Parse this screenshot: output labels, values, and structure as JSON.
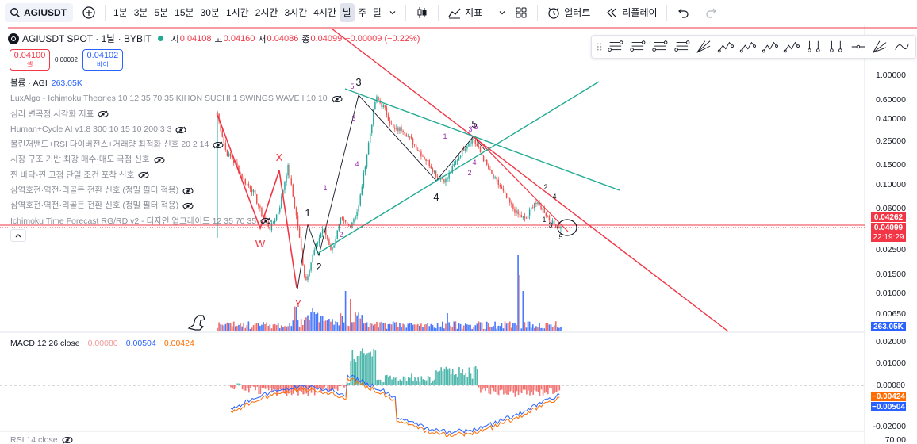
{
  "toolbar": {
    "symbol": "AGIUSDT",
    "intervals": [
      "1분",
      "3분",
      "5분",
      "15분",
      "30분",
      "1시간",
      "2시간",
      "3시간",
      "4시간",
      "날",
      "주",
      "달"
    ],
    "active_interval": "날",
    "indicators_label": "지표",
    "alert_label": "얼러트",
    "replay_label": "리플레이",
    "icons": [
      "search-icon",
      "add-icon",
      "chevron-down-icon",
      "candle-type-icon",
      "indicators-icon",
      "layout-grid-icon",
      "alarm-icon",
      "replay-icon",
      "undo-icon",
      "redo-icon"
    ]
  },
  "header": {
    "title": "AGIUSDT SPOT · 1날 · BYBIT",
    "open_label": "시",
    "open": "0.04108",
    "high_label": "고",
    "high": "0.04160",
    "low_label": "저",
    "low": "0.04086",
    "close_label": "종",
    "close": "0.04099",
    "change": "−0.00009 (−0.22%)"
  },
  "trade": {
    "sell_price": "0.04100",
    "sell_label": "셀",
    "spread": "0.00002",
    "buy_price": "0.04102",
    "buy_label": "바이"
  },
  "indicators": {
    "volume_label": "볼륨 · AGI",
    "volume_value": "263.05K",
    "items": [
      "LuxAlgo - Ichimoku Theories 10 12 35 70 35 KIHON SUCHI 1 SWINGS WAVE I 10 10",
      "심리 변곡점 시각화 지표",
      "Human+Cycle AI v1.8 300 10 15 10 200 3 3",
      "볼린저밴드+RSI 다이버전스+거래량 최적화 신호 20 2 14",
      "시장 구조 기반 최강 매수·매도 극점 신호",
      "찐 바닥-찐 고점 단일 조건 포착 신호",
      "삼역호전·역전·리골든 전환 신호 (정밀 필터 적용)",
      "삼역호전·역전·리골든 전환 신호 (정밀 필터 적용)",
      "Ichimoku Time Forecast RG/RD v2 - 디자인 업그레이드 12 35 70 35"
    ]
  },
  "macd": {
    "label": "MACD 12 26 close",
    "hist": "−0.00080",
    "macd": "−0.00504",
    "signal": "−0.00424",
    "axis_ticks": [
      "0.02000",
      "0.01000",
      "-0.02000"
    ],
    "colors": {
      "hist_pos": "#26a69a",
      "hist_neg": "#ef5350",
      "macd": "#2962ff",
      "signal": "#ff6d00"
    }
  },
  "rsi": {
    "label": "RSI 14 close",
    "axis_tick": "70.00"
  },
  "price_tags": {
    "high_line": "0.04262",
    "last": "0.04099",
    "countdown": "22:19:29",
    "volume": "263.05K",
    "macd_hist": "−0.00080",
    "macd_signal": "−0.00424",
    "macd_line": "−0.00504"
  },
  "colors": {
    "up": "#26a69a",
    "down": "#ef5350",
    "trendline_red": "#f23645",
    "trendline_green": "#22ab94",
    "accent_blue": "#2962ff"
  },
  "chart_data": {
    "type": "line",
    "scale": "log",
    "price_axis_ticks": [
      1.0,
      0.6,
      0.4,
      0.25,
      0.15,
      0.1,
      0.06,
      0.04,
      0.025,
      0.015,
      0.01,
      0.0065
    ],
    "price_axis_labels": [
      "1.00000",
      "0.60000",
      "0.40000",
      "0.25000",
      "0.15000",
      "0.10000",
      "0.06000",
      "0.04000",
      "0.02500",
      "0.01500",
      "0.01000",
      "0.00650"
    ],
    "series": [
      {
        "type": "line",
        "values": [
          0.45,
          0.2,
          0.16,
          0.11,
          0.09,
          0.055,
          0.04,
          0.06,
          0.15,
          0.05,
          0.013,
          0.025,
          0.041,
          0.025,
          0.048,
          0.042,
          0.06,
          0.2,
          0.64,
          0.5,
          0.32,
          0.33,
          0.26,
          0.2,
          0.16,
          0.12,
          0.11,
          0.16,
          0.22,
          0.27,
          0.19,
          0.13,
          0.1,
          0.072,
          0.055,
          0.048,
          0.07,
          0.06,
          0.045,
          0.041
        ]
      }
    ],
    "wave_labels": [
      {
        "text": "W",
        "color": "#f23645"
      },
      {
        "text": "X",
        "color": "#f23645"
      },
      {
        "text": "Y",
        "color": "#f23645"
      },
      {
        "text": "1",
        "color": "#131722"
      },
      {
        "text": "2",
        "color": "#131722"
      },
      {
        "text": "3",
        "color": "#131722"
      },
      {
        "text": "4",
        "color": "#131722"
      },
      {
        "text": "5",
        "color": "#131722"
      },
      {
        "text": "1",
        "color": "#9c27b0"
      },
      {
        "text": "2",
        "color": "#9c27b0"
      },
      {
        "text": "3",
        "color": "#9c27b0"
      },
      {
        "text": "4",
        "color": "#9c27b0"
      },
      {
        "text": "5",
        "color": "#9c27b0"
      },
      {
        "text": "1",
        "color": "#9c27b0"
      },
      {
        "text": "2",
        "color": "#9c27b0"
      },
      {
        "text": "3",
        "color": "#9c27b0"
      },
      {
        "text": "4",
        "color": "#9c27b0"
      },
      {
        "text": "5",
        "color": "#9c27b0"
      },
      {
        "text": "2",
        "color": "#131722"
      },
      {
        "text": "4",
        "color": "#131722"
      },
      {
        "text": "1",
        "color": "#131722"
      },
      {
        "text": "3",
        "color": "#131722"
      },
      {
        "text": "5",
        "color": "#131722"
      }
    ],
    "current_price": 0.04099,
    "horizontal_line": 0.04262
  }
}
